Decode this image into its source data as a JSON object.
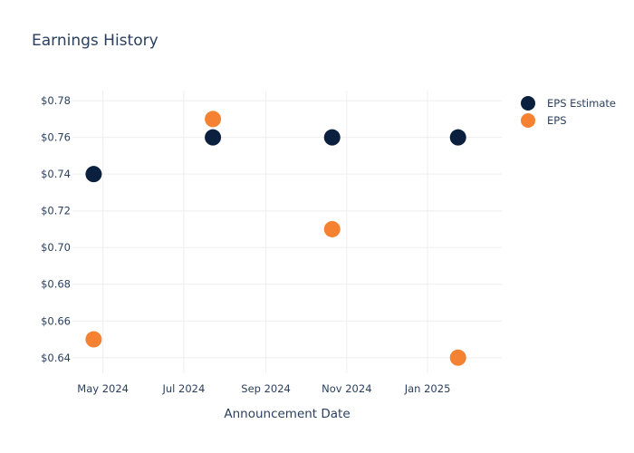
{
  "chart_data": {
    "type": "scatter",
    "title": "Earnings History",
    "xlabel": "Announcement Date",
    "ylabel": "",
    "x_ticks": [
      {
        "date": "2024-05-01",
        "label": "May 2024"
      },
      {
        "date": "2024-07-01",
        "label": "Jul 2024"
      },
      {
        "date": "2024-09-01",
        "label": "Sep 2024"
      },
      {
        "date": "2024-11-01",
        "label": "Nov 2024"
      },
      {
        "date": "2025-01-01",
        "label": "Jan 2025"
      }
    ],
    "y_ticks": [
      {
        "value": 0.64,
        "label": "$0.64"
      },
      {
        "value": 0.66,
        "label": "$0.66"
      },
      {
        "value": 0.68,
        "label": "$0.68"
      },
      {
        "value": 0.7,
        "label": "$0.70"
      },
      {
        "value": 0.72,
        "label": "$0.72"
      },
      {
        "value": 0.74,
        "label": "$0.74"
      },
      {
        "value": 0.76,
        "label": "$0.76"
      },
      {
        "value": 0.78,
        "label": "$0.78"
      }
    ],
    "xlim": [
      "2024-04-08",
      "2025-02-26"
    ],
    "ylim": [
      0.6315,
      0.7855
    ],
    "grid": true,
    "legend_position": "top-right",
    "series": [
      {
        "name": "EPS Estimate",
        "color": "#0b1f3f",
        "points": [
          {
            "x": "2024-04-24",
            "y": 0.74
          },
          {
            "x": "2024-07-23",
            "y": 0.76
          },
          {
            "x": "2024-10-21",
            "y": 0.76
          },
          {
            "x": "2025-01-24",
            "y": 0.76
          }
        ]
      },
      {
        "name": "EPS",
        "color": "#f58232",
        "points": [
          {
            "x": "2024-04-24",
            "y": 0.65
          },
          {
            "x": "2024-07-23",
            "y": 0.77
          },
          {
            "x": "2024-10-21",
            "y": 0.71
          },
          {
            "x": "2025-01-24",
            "y": 0.64
          }
        ]
      }
    ]
  }
}
